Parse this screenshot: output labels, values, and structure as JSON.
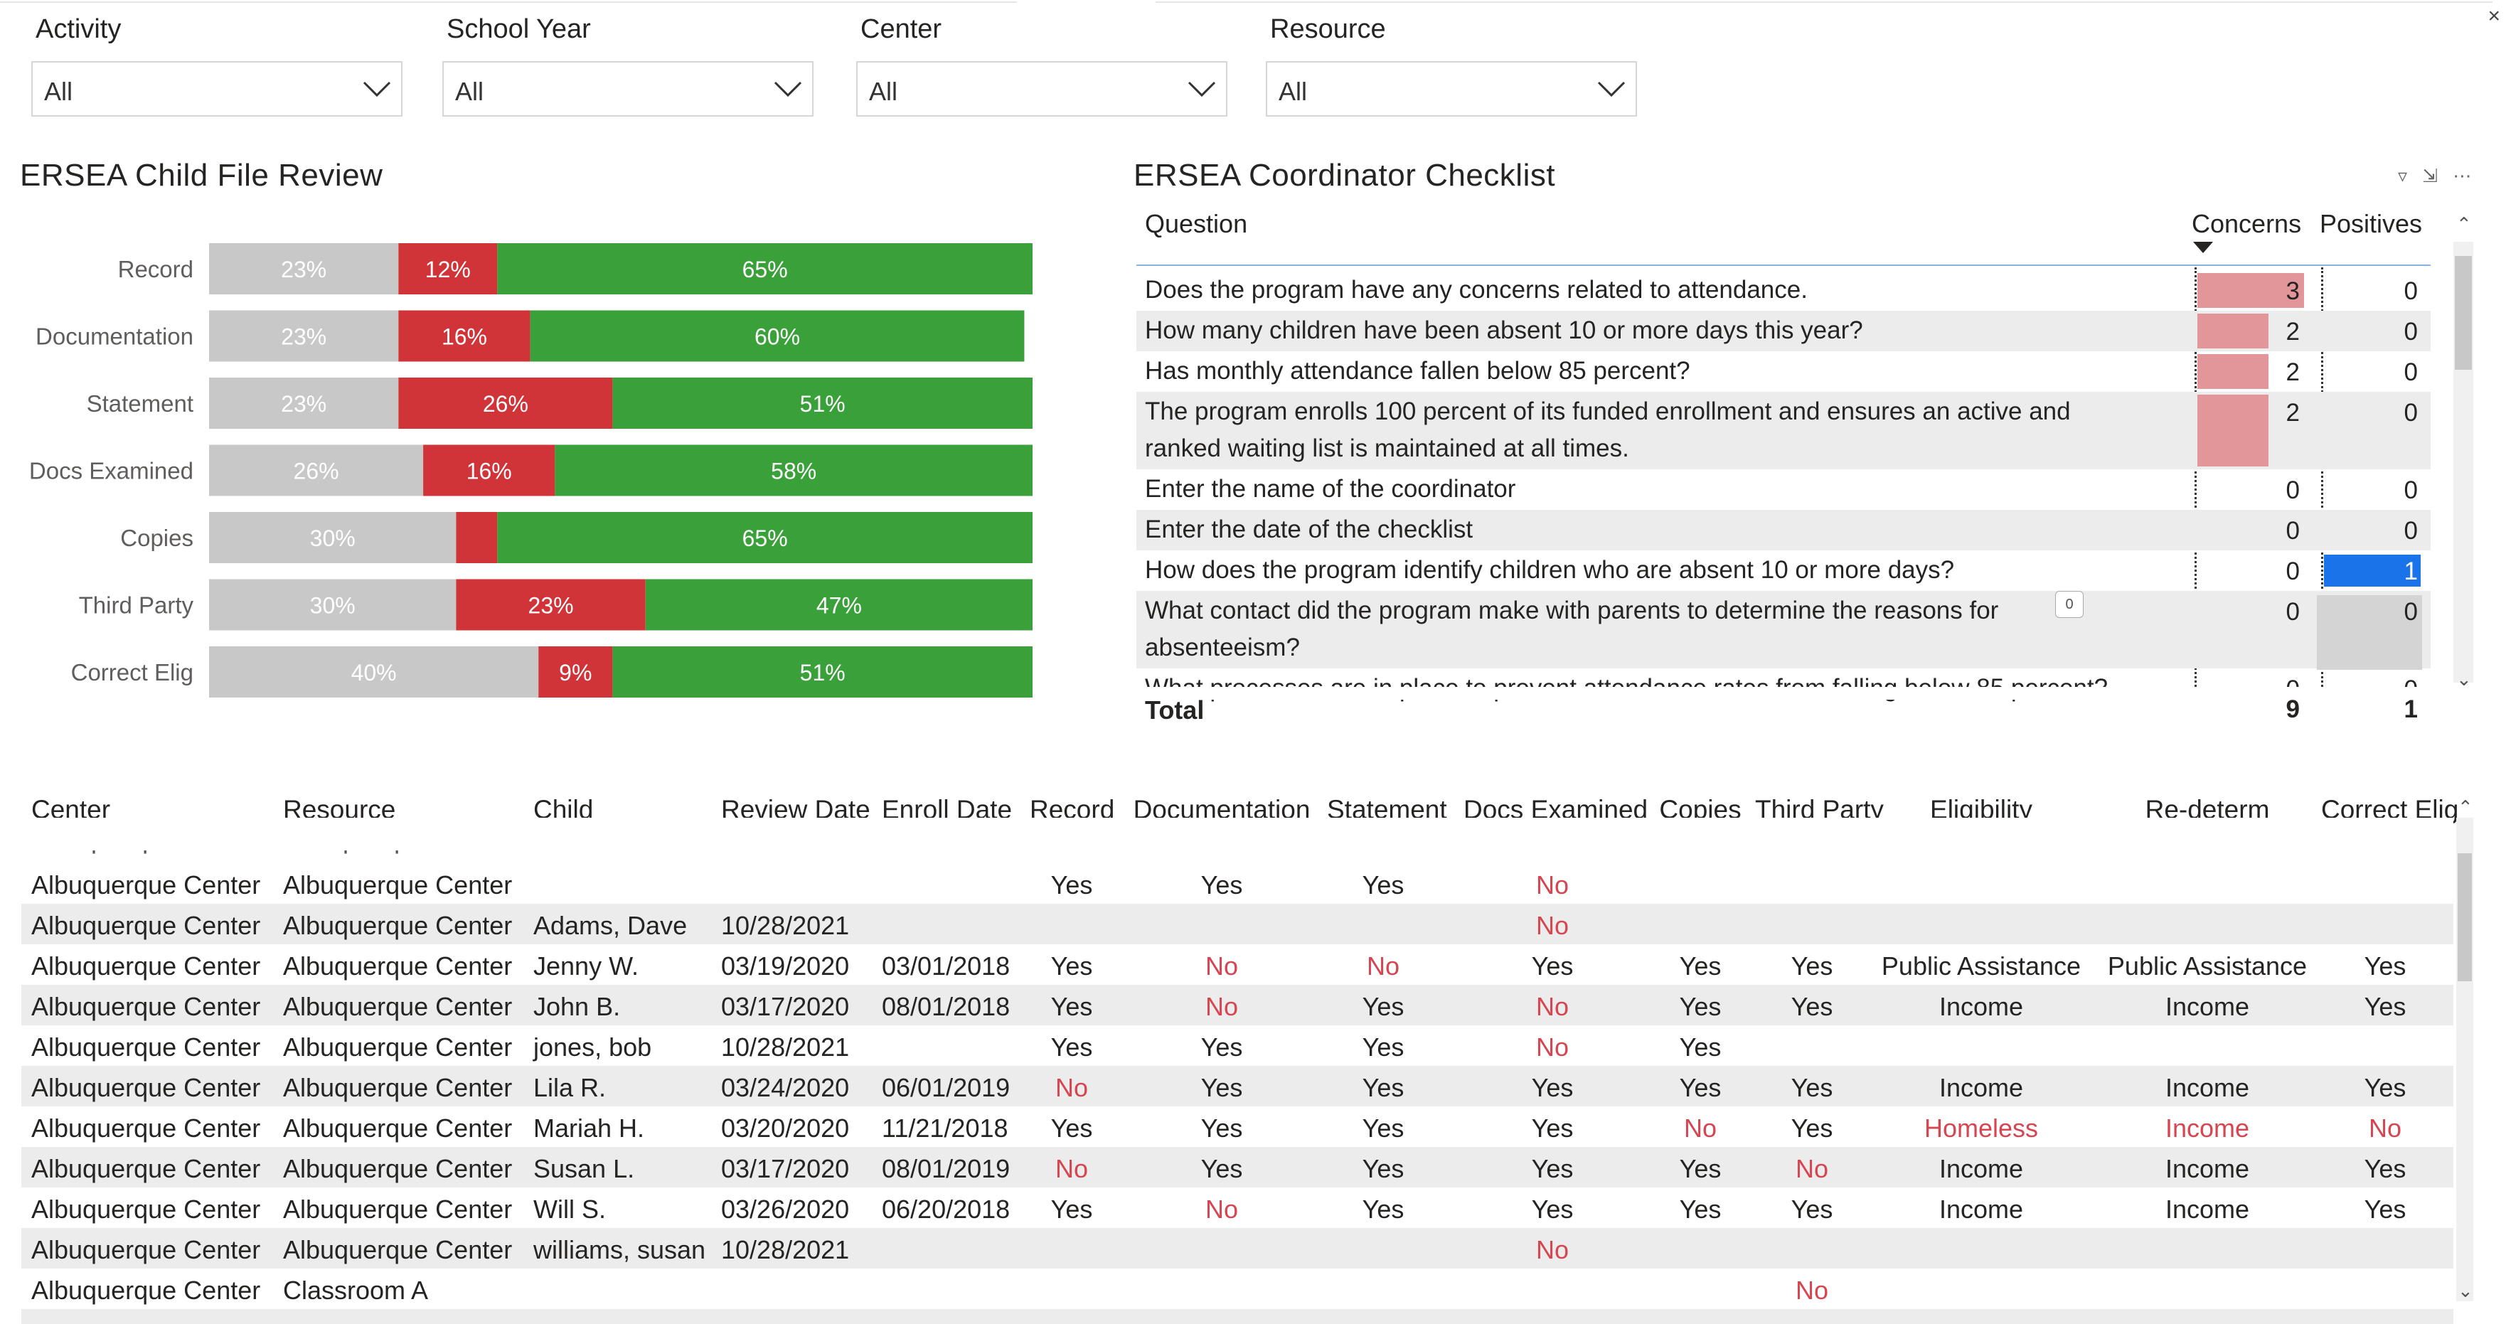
{
  "slicers": [
    {
      "label": "Activity",
      "value": "All"
    },
    {
      "label": "School Year",
      "value": "All"
    },
    {
      "label": "Center",
      "value": "All"
    },
    {
      "label": "Resource",
      "value": "All"
    }
  ],
  "close_glyph": "×",
  "child_file_review": {
    "title": "ERSEA Child File Review"
  },
  "chart_data": {
    "type": "bar",
    "orientation": "horizontal",
    "stacked": "100%",
    "title": "ERSEA Child File Review",
    "categories": [
      "Record",
      "Documentation",
      "Statement",
      "Docs Examined",
      "Copies",
      "Third Party",
      "Correct Elig"
    ],
    "series": [
      {
        "color": "#c8c8c8",
        "values": [
          23,
          23,
          23,
          26,
          30,
          30,
          40
        ],
        "labels": [
          "23%",
          "23%",
          "23%",
          "26%",
          "30%",
          "30%",
          "40%"
        ]
      },
      {
        "color": "#d13438",
        "values": [
          12,
          16,
          26,
          16,
          5,
          23,
          9
        ],
        "labels": [
          "12%",
          "16%",
          "26%",
          "16%",
          "",
          "23%",
          "9%"
        ]
      },
      {
        "color": "#3aa13a",
        "values": [
          65,
          60,
          51,
          58,
          65,
          47,
          51
        ],
        "labels": [
          "65%",
          "60%",
          "51%",
          "58%",
          "65%",
          "47%",
          "51%"
        ]
      }
    ]
  },
  "checklist": {
    "title": "ERSEA Coordinator Checklist",
    "headers": {
      "question": "Question",
      "concerns": "Concerns",
      "positives": "Positives"
    },
    "rows": [
      {
        "lines": [
          "Does the program have any concerns related to attendance."
        ],
        "concerns": "3",
        "positives": "0",
        "concern_level": 3
      },
      {
        "lines": [
          "How many children have been absent 10 or more days this year?"
        ],
        "concerns": "2",
        "positives": "0",
        "concern_level": 2
      },
      {
        "lines": [
          "Has monthly attendance fallen below 85 percent?"
        ],
        "concerns": "2",
        "positives": "0",
        "concern_level": 2
      },
      {
        "lines": [
          "The program enrolls 100 percent of its funded enrollment and ensures an active and",
          "ranked waiting list is maintained at all times."
        ],
        "concerns": "2",
        "positives": "0",
        "concern_level": 2
      },
      {
        "lines": [
          "Enter the name of the coordinator"
        ],
        "concerns": "0",
        "positives": "0",
        "concern_level": 0
      },
      {
        "lines": [
          "Enter the date of the checklist"
        ],
        "concerns": "0",
        "positives": "0",
        "concern_level": 0
      },
      {
        "lines": [
          "How does the program identify children who are absent 10 or more days?"
        ],
        "concerns": "0",
        "positives": "1",
        "concern_level": 0,
        "positive_highlight": true
      },
      {
        "lines": [
          "What contact did the program make with parents to determine the reasons for",
          "absenteeism?"
        ],
        "concerns": "0",
        "positives": "0",
        "concern_level": 0,
        "tooltip": "0"
      },
      {
        "lines": [
          "What processes are in place to prevent attendance rates from falling below 85 percent?"
        ],
        "concerns": "0",
        "positives": "0",
        "concern_level": 0
      }
    ],
    "total": {
      "label": "Total",
      "concerns": "9",
      "positives": "1"
    }
  },
  "table": {
    "columns": [
      "Center",
      "Resource",
      "Child",
      "Review Date",
      "Enroll Date",
      "Record",
      "Documentation",
      "Statement",
      "Docs Examined",
      "Copies",
      "Third Party",
      "Eligibility",
      "Re-determ",
      "Correct Elig"
    ],
    "partial_top": [
      "Albuquerque Center",
      "Albuquerque Center",
      "",
      "",
      "",
      "Yes",
      "Yes",
      "Yes"
    ],
    "rows": [
      [
        "Albuquerque Center",
        "Albuquerque Center",
        "",
        "",
        "",
        "Yes",
        "Yes",
        "Yes",
        "No",
        "",
        "",
        "",
        "",
        ""
      ],
      [
        "Albuquerque Center",
        "Albuquerque Center",
        "Adams, Dave",
        "10/28/2021",
        "",
        "",
        "",
        "",
        "No",
        "",
        "",
        "",
        "",
        ""
      ],
      [
        "Albuquerque Center",
        "Albuquerque Center",
        "Jenny W.",
        "03/19/2020",
        "03/01/2018",
        "Yes",
        "No",
        "No",
        "Yes",
        "Yes",
        "Yes",
        "Public Assistance",
        "Public Assistance",
        "Yes"
      ],
      [
        "Albuquerque Center",
        "Albuquerque Center",
        "John B.",
        "03/17/2020",
        "08/01/2018",
        "Yes",
        "No",
        "Yes",
        "No",
        "Yes",
        "Yes",
        "Income",
        "Income",
        "Yes"
      ],
      [
        "Albuquerque Center",
        "Albuquerque Center",
        "jones, bob",
        "10/28/2021",
        "",
        "Yes",
        "Yes",
        "Yes",
        "No",
        "Yes",
        "",
        "",
        "",
        ""
      ],
      [
        "Albuquerque Center",
        "Albuquerque Center",
        "Lila R.",
        "03/24/2020",
        "06/01/2019",
        "No",
        "Yes",
        "Yes",
        "Yes",
        "Yes",
        "Yes",
        "Income",
        "Income",
        "Yes"
      ],
      [
        "Albuquerque Center",
        "Albuquerque Center",
        "Mariah H.",
        "03/20/2020",
        "11/21/2018",
        "Yes",
        "Yes",
        "Yes",
        "Yes",
        "No",
        "Yes",
        "Homeless",
        "Income",
        "No"
      ],
      [
        "Albuquerque Center",
        "Albuquerque Center",
        "Susan L.",
        "03/17/2020",
        "08/01/2019",
        "No",
        "Yes",
        "Yes",
        "Yes",
        "Yes",
        "No",
        "Income",
        "Income",
        "Yes"
      ],
      [
        "Albuquerque Center",
        "Albuquerque Center",
        "Will S.",
        "03/26/2020",
        "06/20/2018",
        "Yes",
        "No",
        "Yes",
        "Yes",
        "Yes",
        "Yes",
        "Income",
        "Income",
        "Yes"
      ],
      [
        "Albuquerque Center",
        "Albuquerque Center",
        "williams, susan",
        "10/28/2021",
        "",
        "",
        "",
        "",
        "No",
        "",
        "",
        "",
        "",
        ""
      ],
      [
        "Albuquerque Center",
        "Classroom A",
        "",
        "",
        "",
        "",
        "",
        "",
        "",
        "",
        "No",
        "",
        "",
        ""
      ]
    ],
    "red_values": [
      "No",
      "Homeless"
    ],
    "red_cells": [
      [
        6,
        12
      ]
    ]
  },
  "colors": {
    "grey": "#c8c8c8",
    "red": "#d13438",
    "green": "#3aa13a",
    "concern_bar": "#e3969a",
    "positive_highlight": "#1a73e8",
    "red_text": "#d64550"
  }
}
